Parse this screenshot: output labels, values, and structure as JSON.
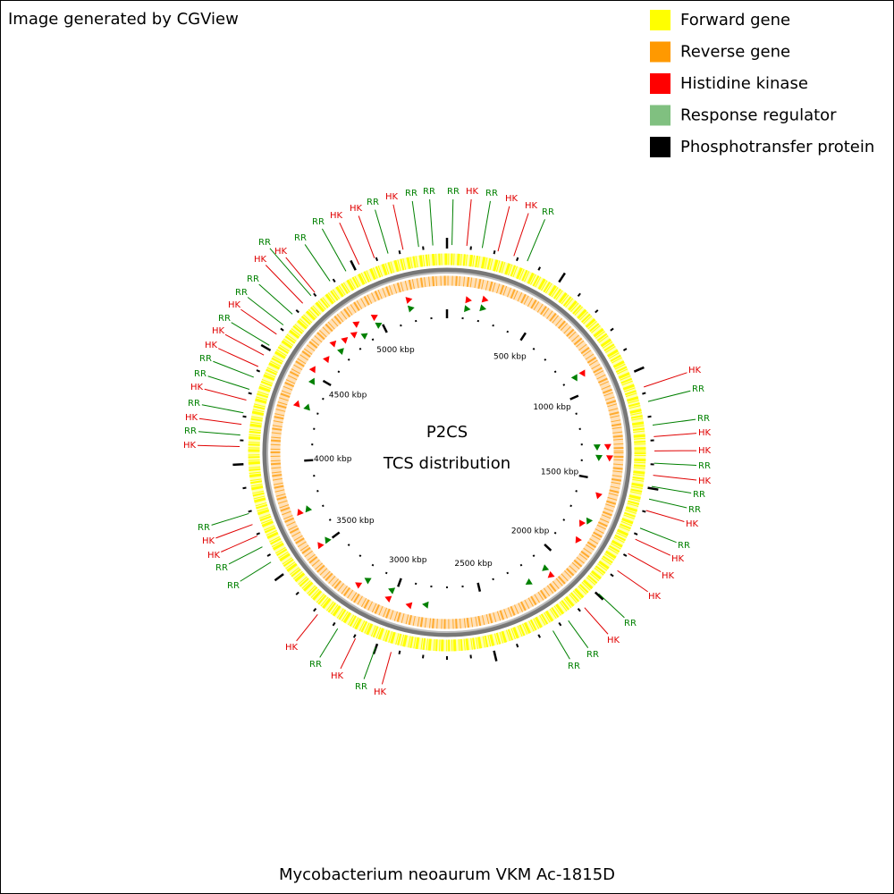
{
  "header": {
    "title": "Image generated by CGView"
  },
  "legend": [
    {
      "label": "Forward gene",
      "color": "#ffff00"
    },
    {
      "label": "Reverse gene",
      "color": "#ff9900"
    },
    {
      "label": "Histidine kinase",
      "color": "#ff0000"
    },
    {
      "label": "Response regulator",
      "color": "#80c080"
    },
    {
      "label": "Phosphotransfer protein",
      "color": "#000000"
    }
  ],
  "map": {
    "title": "P2CS",
    "subtitle": "TCS distribution",
    "scale_labels": [
      "500 kbp",
      "1000 kbp",
      "1500 kbp",
      "2000 kbp",
      "2500 kbp",
      "3000 kbp",
      "3500 kbp",
      "4000 kbp",
      "4500 kbp",
      "5000 kbp"
    ],
    "feature_labels": [
      {
        "text": "HK",
        "color": "#e00000"
      },
      {
        "text": "RR",
        "color": "#008000"
      },
      {
        "text": "RR",
        "color": "#008000"
      },
      {
        "text": "RR",
        "color": "#008000"
      },
      {
        "text": "HK",
        "color": "#e00000"
      },
      {
        "text": "RR",
        "color": "#008000"
      },
      {
        "text": "HK",
        "color": "#e00000"
      },
      {
        "text": "HK",
        "color": "#e00000"
      },
      {
        "text": "RR",
        "color": "#008000"
      },
      {
        "text": "HK",
        "color": "#e00000"
      },
      {
        "text": "RR",
        "color": "#008000"
      },
      {
        "text": "HK",
        "color": "#e00000"
      },
      {
        "text": "RR",
        "color": "#008000"
      },
      {
        "text": "RR",
        "color": "#008000"
      },
      {
        "text": "HK",
        "color": "#e00000"
      },
      {
        "text": "RR",
        "color": "#008000"
      },
      {
        "text": "HK",
        "color": "#e00000"
      },
      {
        "text": "RR",
        "color": "#008000"
      },
      {
        "text": "RR",
        "color": "#008000"
      },
      {
        "text": "HK",
        "color": "#e00000"
      },
      {
        "text": "RR",
        "color": "#008000"
      },
      {
        "text": "HK",
        "color": "#e00000"
      },
      {
        "text": "HK",
        "color": "#e00000"
      },
      {
        "text": "RR",
        "color": "#008000"
      },
      {
        "text": "RR",
        "color": "#008000"
      },
      {
        "text": "HK",
        "color": "#e00000"
      },
      {
        "text": "RR",
        "color": "#008000"
      },
      {
        "text": "HK",
        "color": "#e00000"
      },
      {
        "text": "RR",
        "color": "#008000"
      },
      {
        "text": "HK",
        "color": "#e00000"
      },
      {
        "text": "HK",
        "color": "#e00000"
      },
      {
        "text": "RR",
        "color": "#008000"
      },
      {
        "text": "RR",
        "color": "#008000"
      },
      {
        "text": "HK",
        "color": "#e00000"
      },
      {
        "text": "HK",
        "color": "#e00000"
      },
      {
        "text": "RR",
        "color": "#008000"
      },
      {
        "text": "HK",
        "color": "#e00000"
      },
      {
        "text": "RR",
        "color": "#008000"
      },
      {
        "text": "RR",
        "color": "#008000"
      },
      {
        "text": "HK",
        "color": "#e00000"
      },
      {
        "text": "RR",
        "color": "#008000"
      },
      {
        "text": "HK",
        "color": "#e00000"
      },
      {
        "text": "HK",
        "color": "#e00000"
      },
      {
        "text": "HK",
        "color": "#e00000"
      },
      {
        "text": "RR",
        "color": "#008000"
      },
      {
        "text": "HK",
        "color": "#e00000"
      },
      {
        "text": "RR",
        "color": "#008000"
      },
      {
        "text": "RR",
        "color": "#008000"
      },
      {
        "text": "HK",
        "color": "#e00000"
      },
      {
        "text": "RR",
        "color": "#008000"
      },
      {
        "text": "HK",
        "color": "#e00000"
      },
      {
        "text": "RR",
        "color": "#008000"
      },
      {
        "text": "HK",
        "color": "#e00000"
      },
      {
        "text": "RR",
        "color": "#008000"
      },
      {
        "text": "HK",
        "color": "#e00000"
      },
      {
        "text": "HK",
        "color": "#e00000"
      },
      {
        "text": "RR",
        "color": "#008000"
      },
      {
        "text": "RR",
        "color": "#008000"
      }
    ]
  },
  "footer": {
    "caption": "Mycobacterium neoaurum VKM Ac-1815D"
  }
}
